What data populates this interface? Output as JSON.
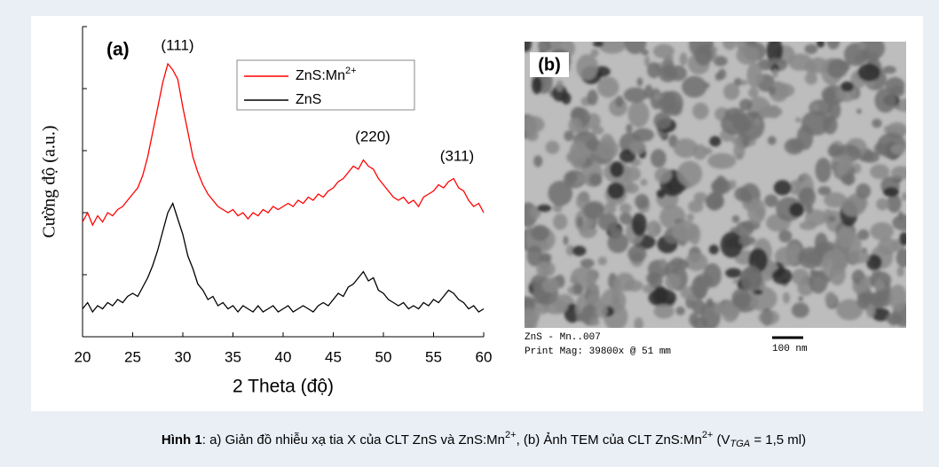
{
  "chart_data": {
    "type": "line",
    "panel_label": "(a)",
    "xlabel": "2 Theta (độ)",
    "ylabel": "Cường độ (a.u.)",
    "annotations": [
      "(111)",
      "(220)",
      "(311)"
    ],
    "x": [
      20,
      20.5,
      21,
      21.5,
      22,
      22.5,
      23,
      23.5,
      24,
      24.5,
      25,
      25.5,
      26,
      26.5,
      27,
      27.5,
      28,
      28.5,
      29,
      29.5,
      30,
      30.5,
      31,
      31.5,
      32,
      32.5,
      33,
      33.5,
      34,
      34.5,
      35,
      35.5,
      36,
      36.5,
      37,
      37.5,
      38,
      38.5,
      39,
      39.5,
      40,
      40.5,
      41,
      41.5,
      42,
      42.5,
      43,
      43.5,
      44,
      44.5,
      45,
      45.5,
      46,
      46.5,
      47,
      47.5,
      48,
      48.5,
      49,
      49.5,
      50,
      50.5,
      51,
      51.5,
      52,
      52.5,
      53,
      53.5,
      54,
      54.5,
      55,
      55.5,
      56,
      56.5,
      57,
      57.5,
      58,
      58.5,
      59,
      59.5,
      60
    ],
    "series": [
      {
        "name": "ZnS:Mn",
        "name_superscript": "2+",
        "color": "#ff0000",
        "values": [
          37,
          40,
          36,
          39,
          37,
          40,
          39,
          41,
          42,
          44,
          46,
          48,
          52,
          58,
          66,
          74,
          82,
          88,
          86,
          83,
          74,
          66,
          58,
          53,
          49,
          46,
          44,
          42,
          41,
          40,
          41,
          39,
          40,
          38,
          40,
          39,
          41,
          40,
          42,
          41,
          42,
          43,
          42,
          44,
          43,
          45,
          44,
          46,
          45,
          47,
          48,
          50,
          51,
          53,
          55,
          54,
          57,
          55,
          54,
          51,
          49,
          47,
          45,
          44,
          45,
          43,
          44,
          42,
          45,
          46,
          47,
          49,
          48,
          50,
          51,
          48,
          47,
          44,
          42,
          43,
          40
        ]
      },
      {
        "name": "ZnS",
        "color": "#000000",
        "values": [
          9,
          11,
          8,
          10,
          9,
          11,
          10,
          12,
          11,
          13,
          14,
          13,
          16,
          19,
          23,
          28,
          34,
          40,
          43,
          38,
          33,
          26,
          22,
          17,
          15,
          12,
          13,
          10,
          11,
          9,
          10,
          8,
          10,
          9,
          8,
          10,
          8,
          9,
          10,
          8,
          9,
          10,
          8,
          9,
          10,
          9,
          8,
          10,
          11,
          10,
          12,
          14,
          13,
          16,
          17,
          19,
          21,
          18,
          19,
          15,
          14,
          12,
          11,
          10,
          11,
          9,
          10,
          9,
          11,
          10,
          12,
          11,
          13,
          15,
          14,
          12,
          11,
          9,
          10,
          8,
          9
        ]
      }
    ],
    "xlim": [
      20,
      60
    ],
    "xticks": [
      20,
      25,
      30,
      35,
      40,
      45,
      50,
      55,
      60
    ],
    "ylim": [
      0,
      100
    ],
    "yticks": [
      0,
      20,
      40,
      60,
      80,
      100
    ],
    "show_ytick_labels": false
  },
  "tem_image": {
    "panel_label": "(b)",
    "sample_id": "ZnS - Mn..007",
    "print_mag": "Print Mag: 39800x @ 51 mm",
    "scale_bar": "100 nm"
  },
  "caption": [
    {
      "text": "Hình 1",
      "bold": true
    },
    {
      "text": ": a) Giản đồ nhiễu xạ tia X của CLT ZnS và ZnS:Mn"
    },
    {
      "text": "2+",
      "sup": true
    },
    {
      "text": ", (b) Ảnh TEM của CLT ZnS:Mn"
    },
    {
      "text": "2+",
      "sup": true
    },
    {
      "text": " (V"
    },
    {
      "text": "TGA",
      "sub": true,
      "italic": true
    },
    {
      "text": " = 1,5 ml)"
    }
  ]
}
